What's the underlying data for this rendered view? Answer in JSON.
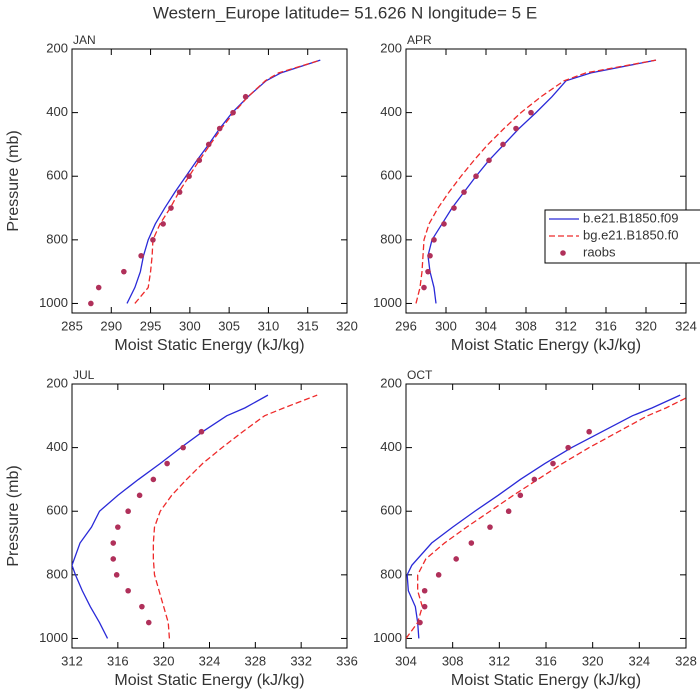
{
  "title": "Western_Europe  latitude= 51.626 N longitude= 5 E",
  "chart_data": [
    {
      "type": "line",
      "panel": "JAN",
      "xlabel": "Moist Static Energy (kJ/kg)",
      "ylabel": "Pressure (mb)",
      "xlim": [
        285,
        320
      ],
      "xticks": [
        285,
        290,
        295,
        300,
        305,
        310,
        315,
        320
      ],
      "ylim": [
        1030,
        200
      ],
      "yticks": [
        200,
        400,
        600,
        800,
        1000
      ],
      "legend": false,
      "series": [
        {
          "name": "b.e21.B1850.f09",
          "color": "#2a2ad8",
          "linestyle": "solid",
          "y": [
            1000,
            950,
            900,
            850,
            800,
            750,
            700,
            650,
            600,
            550,
            500,
            450,
            400,
            350,
            300,
            275,
            235
          ],
          "values": [
            292.0,
            293.0,
            293.7,
            294.1,
            294.7,
            295.6,
            296.8,
            298.1,
            299.5,
            300.9,
            302.4,
            303.8,
            305.4,
            307.4,
            309.7,
            311.6,
            316.6
          ]
        },
        {
          "name": "bg.e21.B1850.f0",
          "color": "#ee2a2a",
          "linestyle": "dashed",
          "y": [
            1000,
            950,
            900,
            850,
            800,
            750,
            700,
            650,
            600,
            550,
            500,
            450,
            400,
            350,
            300,
            275,
            235
          ],
          "values": [
            293.0,
            294.7,
            295.0,
            295.2,
            295.3,
            296.2,
            297.5,
            298.6,
            299.9,
            301.2,
            302.6,
            304.0,
            305.6,
            307.4,
            309.6,
            311.3,
            316.6
          ]
        },
        {
          "name": "raobs",
          "color": "#b0305a",
          "linestyle": "none",
          "y": [
            1000,
            950,
            900,
            850,
            800,
            750,
            700,
            650,
            600,
            550,
            500,
            450,
            400,
            350
          ],
          "values": [
            287.4,
            288.4,
            291.6,
            293.8,
            295.3,
            296.6,
            297.6,
            298.7,
            299.9,
            301.2,
            302.4,
            303.8,
            305.5,
            307.1
          ]
        }
      ]
    },
    {
      "type": "line",
      "panel": "APR",
      "xlabel": "Moist Static Energy (kJ/kg)",
      "xlim": [
        296,
        324
      ],
      "xticks": [
        296,
        300,
        304,
        308,
        312,
        316,
        320,
        324
      ],
      "ylim": [
        1030,
        200
      ],
      "yticks": [
        200,
        400,
        600,
        800,
        1000
      ],
      "legend": true,
      "series": [
        {
          "name": "b.e21.B1850.f09",
          "color": "#2a2ad8",
          "linestyle": "solid",
          "y": [
            1000,
            950,
            900,
            850,
            800,
            750,
            700,
            650,
            600,
            550,
            500,
            450,
            400,
            350,
            300,
            275,
            235
          ],
          "values": [
            299.0,
            298.8,
            298.4,
            298.2,
            298.6,
            299.6,
            300.6,
            301.8,
            303.0,
            304.3,
            305.8,
            307.3,
            309.0,
            310.6,
            312.0,
            314.5,
            321.0
          ]
        },
        {
          "name": "bg.e21.B1850.f0",
          "color": "#ee2a2a",
          "linestyle": "dashed",
          "y": [
            1000,
            950,
            900,
            850,
            800,
            750,
            700,
            650,
            600,
            550,
            500,
            450,
            400,
            350,
            300,
            275,
            235
          ],
          "values": [
            297.0,
            297.4,
            297.6,
            297.7,
            297.8,
            298.3,
            299.2,
            300.3,
            301.5,
            302.8,
            304.2,
            305.8,
            307.5,
            309.5,
            311.8,
            314.0,
            321.0
          ]
        },
        {
          "name": "raobs",
          "color": "#b0305a",
          "linestyle": "none",
          "y": [
            950,
            900,
            850,
            800,
            750,
            700,
            650,
            600,
            550,
            500,
            450,
            400
          ],
          "values": [
            297.8,
            298.2,
            298.4,
            298.8,
            299.8,
            300.8,
            301.8,
            303.0,
            304.3,
            305.7,
            307.0,
            308.5
          ]
        }
      ]
    },
    {
      "type": "line",
      "panel": "JUL",
      "xlabel": "Moist Static Energy (kJ/kg)",
      "ylabel": "Pressure (mb)",
      "xlim": [
        312,
        336
      ],
      "xticks": [
        312,
        316,
        320,
        324,
        328,
        332,
        336
      ],
      "ylim": [
        1030,
        200
      ],
      "yticks": [
        200,
        400,
        600,
        800,
        1000
      ],
      "legend": false,
      "series": [
        {
          "name": "b.e21.B1850.f09",
          "color": "#2a2ad8",
          "linestyle": "solid",
          "y": [
            1000,
            950,
            900,
            850,
            800,
            770,
            700,
            650,
            600,
            550,
            500,
            450,
            400,
            350,
            300,
            275,
            235
          ],
          "values": [
            315.1,
            314.4,
            313.6,
            312.9,
            312.3,
            312.0,
            312.7,
            313.7,
            314.4,
            316.0,
            317.8,
            319.7,
            321.5,
            323.4,
            325.5,
            327.1,
            329.1
          ]
        },
        {
          "name": "bg.e21.B1850.f0",
          "color": "#ee2a2a",
          "linestyle": "dashed",
          "y": [
            1000,
            950,
            900,
            850,
            800,
            750,
            700,
            650,
            600,
            550,
            500,
            450,
            400,
            350,
            300,
            275,
            235
          ],
          "values": [
            320.5,
            320.4,
            320.0,
            319.6,
            319.2,
            319.1,
            319.1,
            319.2,
            319.7,
            320.7,
            322.0,
            323.4,
            325.1,
            326.9,
            328.8,
            330.5,
            333.4
          ]
        },
        {
          "name": "raobs",
          "color": "#b0305a",
          "linestyle": "none",
          "y": [
            950,
            900,
            850,
            800,
            750,
            700,
            650,
            600,
            550,
            500,
            450,
            400,
            350
          ],
          "values": [
            318.7,
            318.1,
            316.9,
            315.9,
            315.6,
            315.6,
            316.0,
            316.9,
            317.9,
            319.1,
            320.3,
            321.7,
            323.3
          ]
        }
      ]
    },
    {
      "type": "line",
      "panel": "OCT",
      "xlabel": "Moist Static Energy (kJ/kg)",
      "xlim": [
        304,
        328
      ],
      "xticks": [
        304,
        308,
        312,
        316,
        320,
        324,
        328
      ],
      "ylim": [
        1030,
        200
      ],
      "yticks": [
        200,
        400,
        600,
        800,
        1000
      ],
      "legend": false,
      "series": [
        {
          "name": "b.e21.B1850.f09",
          "color": "#2a2ad8",
          "linestyle": "solid",
          "y": [
            1000,
            950,
            900,
            850,
            800,
            770,
            700,
            650,
            600,
            550,
            500,
            450,
            400,
            350,
            300,
            275,
            235
          ],
          "values": [
            305.1,
            305.0,
            304.8,
            304.2,
            304.1,
            304.5,
            306.2,
            308.0,
            309.9,
            311.9,
            313.8,
            315.9,
            318.2,
            320.8,
            323.4,
            325.1,
            327.5
          ]
        },
        {
          "name": "bg.e21.B1850.f0",
          "color": "#ee2a2a",
          "linestyle": "dashed",
          "y": [
            1000,
            950,
            900,
            850,
            800,
            750,
            700,
            650,
            600,
            550,
            500,
            450,
            400,
            350,
            300,
            275,
            235
          ],
          "values": [
            304.0,
            305.0,
            305.4,
            305.0,
            305.0,
            305.7,
            307.3,
            309.2,
            311.2,
            313.2,
            315.3,
            317.4,
            319.7,
            322.2,
            324.7,
            326.3,
            328.5
          ]
        },
        {
          "name": "raobs",
          "color": "#b0305a",
          "linestyle": "none",
          "y": [
            950,
            900,
            850,
            800,
            750,
            700,
            650,
            600,
            550,
            500,
            450,
            400,
            350
          ],
          "values": [
            305.2,
            305.6,
            305.6,
            306.8,
            308.3,
            309.6,
            311.2,
            312.8,
            313.8,
            315.0,
            316.6,
            317.9,
            319.7
          ]
        }
      ]
    }
  ]
}
